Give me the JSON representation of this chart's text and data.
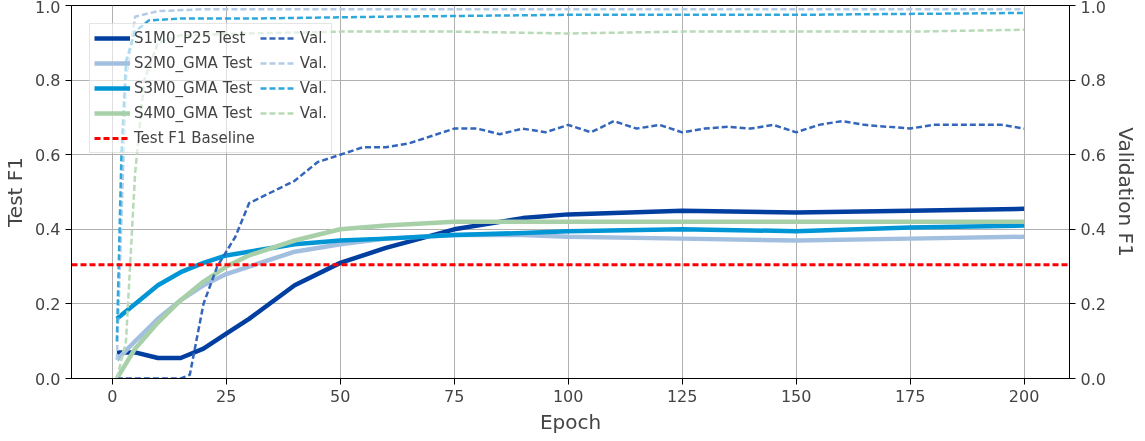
{
  "chart_data": {
    "type": "line",
    "xlabel": "Epoch",
    "ylabel": "Test F1",
    "y2label": "Validation F1",
    "xlim": [
      -8.95,
      209.95
    ],
    "xticks": [
      0,
      25,
      50,
      75,
      100,
      125,
      150,
      175,
      200
    ],
    "ylim": [
      0,
      1
    ],
    "yticks": [
      {
        "value": 0,
        "label": "0.0"
      },
      0.2,
      0.4,
      0.6,
      0.8,
      {
        "value": 1,
        "label": "1.0"
      }
    ],
    "y2lim": [
      0,
      1
    ],
    "y2ticks": [
      {
        "value": 0,
        "label": "0.0"
      },
      0.2,
      0.4,
      0.6,
      0.8,
      {
        "value": 1,
        "label": "1.0"
      }
    ],
    "grid": true,
    "legend": "top left",
    "series": [
      {
        "name": "S1M0_P25 Test",
        "color": "#003fa0",
        "line_style": "solid",
        "x": [
          1,
          5,
          10,
          15,
          20,
          25,
          30,
          40,
          50,
          60,
          75,
          90,
          100,
          125,
          150,
          175,
          200
        ],
        "values": [
          0.07,
          0.07,
          0.055,
          0.055,
          0.08,
          0.12,
          0.16,
          0.25,
          0.31,
          0.35,
          0.4,
          0.43,
          0.44,
          0.45,
          0.445,
          0.45,
          0.455
        ]
      },
      {
        "name": "S2M0_GMA Test",
        "color": "#a3bfe0",
        "line_style": "solid",
        "x": [
          1,
          5,
          10,
          15,
          20,
          25,
          30,
          40,
          50,
          60,
          75,
          90,
          100,
          125,
          150,
          175,
          200
        ],
        "values": [
          0.05,
          0.1,
          0.16,
          0.21,
          0.25,
          0.28,
          0.3,
          0.34,
          0.36,
          0.375,
          0.385,
          0.385,
          0.38,
          0.375,
          0.37,
          0.375,
          0.38
        ]
      },
      {
        "name": "S3M0_GMA Test",
        "color": "#0096d6",
        "line_style": "solid",
        "x": [
          1,
          5,
          10,
          15,
          20,
          25,
          30,
          40,
          50,
          60,
          75,
          90,
          100,
          125,
          150,
          175,
          200
        ],
        "values": [
          0.16,
          0.2,
          0.25,
          0.285,
          0.31,
          0.33,
          0.34,
          0.36,
          0.37,
          0.375,
          0.385,
          0.39,
          0.395,
          0.4,
          0.395,
          0.405,
          0.41
        ]
      },
      {
        "name": "S4M0_GMA Test",
        "color": "#a8d0a8",
        "line_style": "solid",
        "x": [
          1,
          5,
          10,
          15,
          20,
          25,
          30,
          40,
          50,
          60,
          75,
          90,
          100,
          125,
          150,
          175,
          200
        ],
        "values": [
          0.0,
          0.08,
          0.15,
          0.21,
          0.26,
          0.3,
          0.33,
          0.37,
          0.4,
          0.41,
          0.42,
          0.42,
          0.42,
          0.42,
          0.42,
          0.42,
          0.42
        ]
      },
      {
        "name": "Val.",
        "color": "#3366bb",
        "line_style": "dashed",
        "axis": "y2",
        "x": [
          1,
          5,
          10,
          15,
          17,
          20,
          23,
          27,
          30,
          35,
          40,
          45,
          50,
          55,
          60,
          65,
          70,
          75,
          80,
          85,
          90,
          95,
          100,
          105,
          110,
          115,
          120,
          125,
          130,
          135,
          140,
          145,
          150,
          155,
          160,
          165,
          170,
          175,
          180,
          185,
          190,
          195,
          200
        ],
        "values": [
          0,
          0,
          0,
          0,
          0.01,
          0.2,
          0.3,
          0.38,
          0.47,
          0.5,
          0.53,
          0.58,
          0.6,
          0.62,
          0.62,
          0.63,
          0.65,
          0.67,
          0.67,
          0.655,
          0.67,
          0.66,
          0.68,
          0.66,
          0.69,
          0.67,
          0.68,
          0.66,
          0.67,
          0.675,
          0.67,
          0.68,
          0.66,
          0.68,
          0.69,
          0.68,
          0.675,
          0.67,
          0.68,
          0.68,
          0.68,
          0.68,
          0.67
        ]
      },
      {
        "name": "Val.",
        "color": "#b4cce6",
        "line_style": "dashed",
        "axis": "y2",
        "x": [
          1,
          3,
          5,
          10,
          20,
          50,
          100,
          150,
          200
        ],
        "values": [
          0.05,
          0.8,
          0.97,
          0.985,
          0.99,
          0.99,
          0.99,
          0.99,
          0.99
        ]
      },
      {
        "name": "Val.",
        "color": "#2ea8dc",
        "line_style": "dashed",
        "axis": "y2",
        "x": [
          1,
          2,
          3,
          5,
          8,
          15,
          30,
          60,
          100,
          150,
          200
        ],
        "values": [
          0.1,
          0.6,
          0.85,
          0.93,
          0.96,
          0.965,
          0.965,
          0.97,
          0.975,
          0.975,
          0.98
        ]
      },
      {
        "name": "Val.",
        "color": "#b8dab8",
        "line_style": "dashed",
        "axis": "y2",
        "x": [
          1,
          3,
          5,
          7,
          10,
          15,
          30,
          50,
          75,
          100,
          125,
          150,
          175,
          200
        ],
        "values": [
          0,
          0.1,
          0.55,
          0.8,
          0.9,
          0.92,
          0.925,
          0.93,
          0.93,
          0.925,
          0.93,
          0.93,
          0.93,
          0.935
        ]
      }
    ],
    "ref_lines": [
      {
        "axis": "y",
        "value": 0.305,
        "label": "Test F1 Baseline",
        "color": "#ff0000",
        "line_style": "dashed"
      }
    ]
  }
}
